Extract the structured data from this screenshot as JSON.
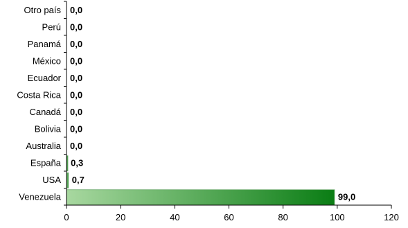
{
  "chart_data": {
    "type": "bar",
    "orientation": "horizontal",
    "categories": [
      "Otro país",
      "Perú",
      "Panamá",
      "México",
      "Ecuador",
      "Costa Rica",
      "Canadá",
      "Bolivia",
      "Australia",
      "España",
      "USA",
      "Venezuela"
    ],
    "values": [
      0.0,
      0.0,
      0.0,
      0.0,
      0.0,
      0.0,
      0.0,
      0.0,
      0.0,
      0.3,
      0.7,
      99.0
    ],
    "value_labels": [
      "0,0",
      "0,0",
      "0,0",
      "0,0",
      "0,0",
      "0,0",
      "0,0",
      "0,0",
      "0,0",
      "0,3",
      "0,7",
      "99,0"
    ],
    "xlim": [
      0,
      120
    ],
    "xticks": [
      0,
      20,
      40,
      60,
      80,
      100,
      120
    ],
    "xtick_labels": [
      "0",
      "20",
      "40",
      "60",
      "80",
      "100",
      "120"
    ],
    "title": "",
    "xlabel": "",
    "ylabel": "",
    "grid": false,
    "legend": "none",
    "colors": {
      "bar_start": "#a8d8a0",
      "bar_end": "#0a7d14",
      "bar_edge": "#6aa86a"
    }
  }
}
